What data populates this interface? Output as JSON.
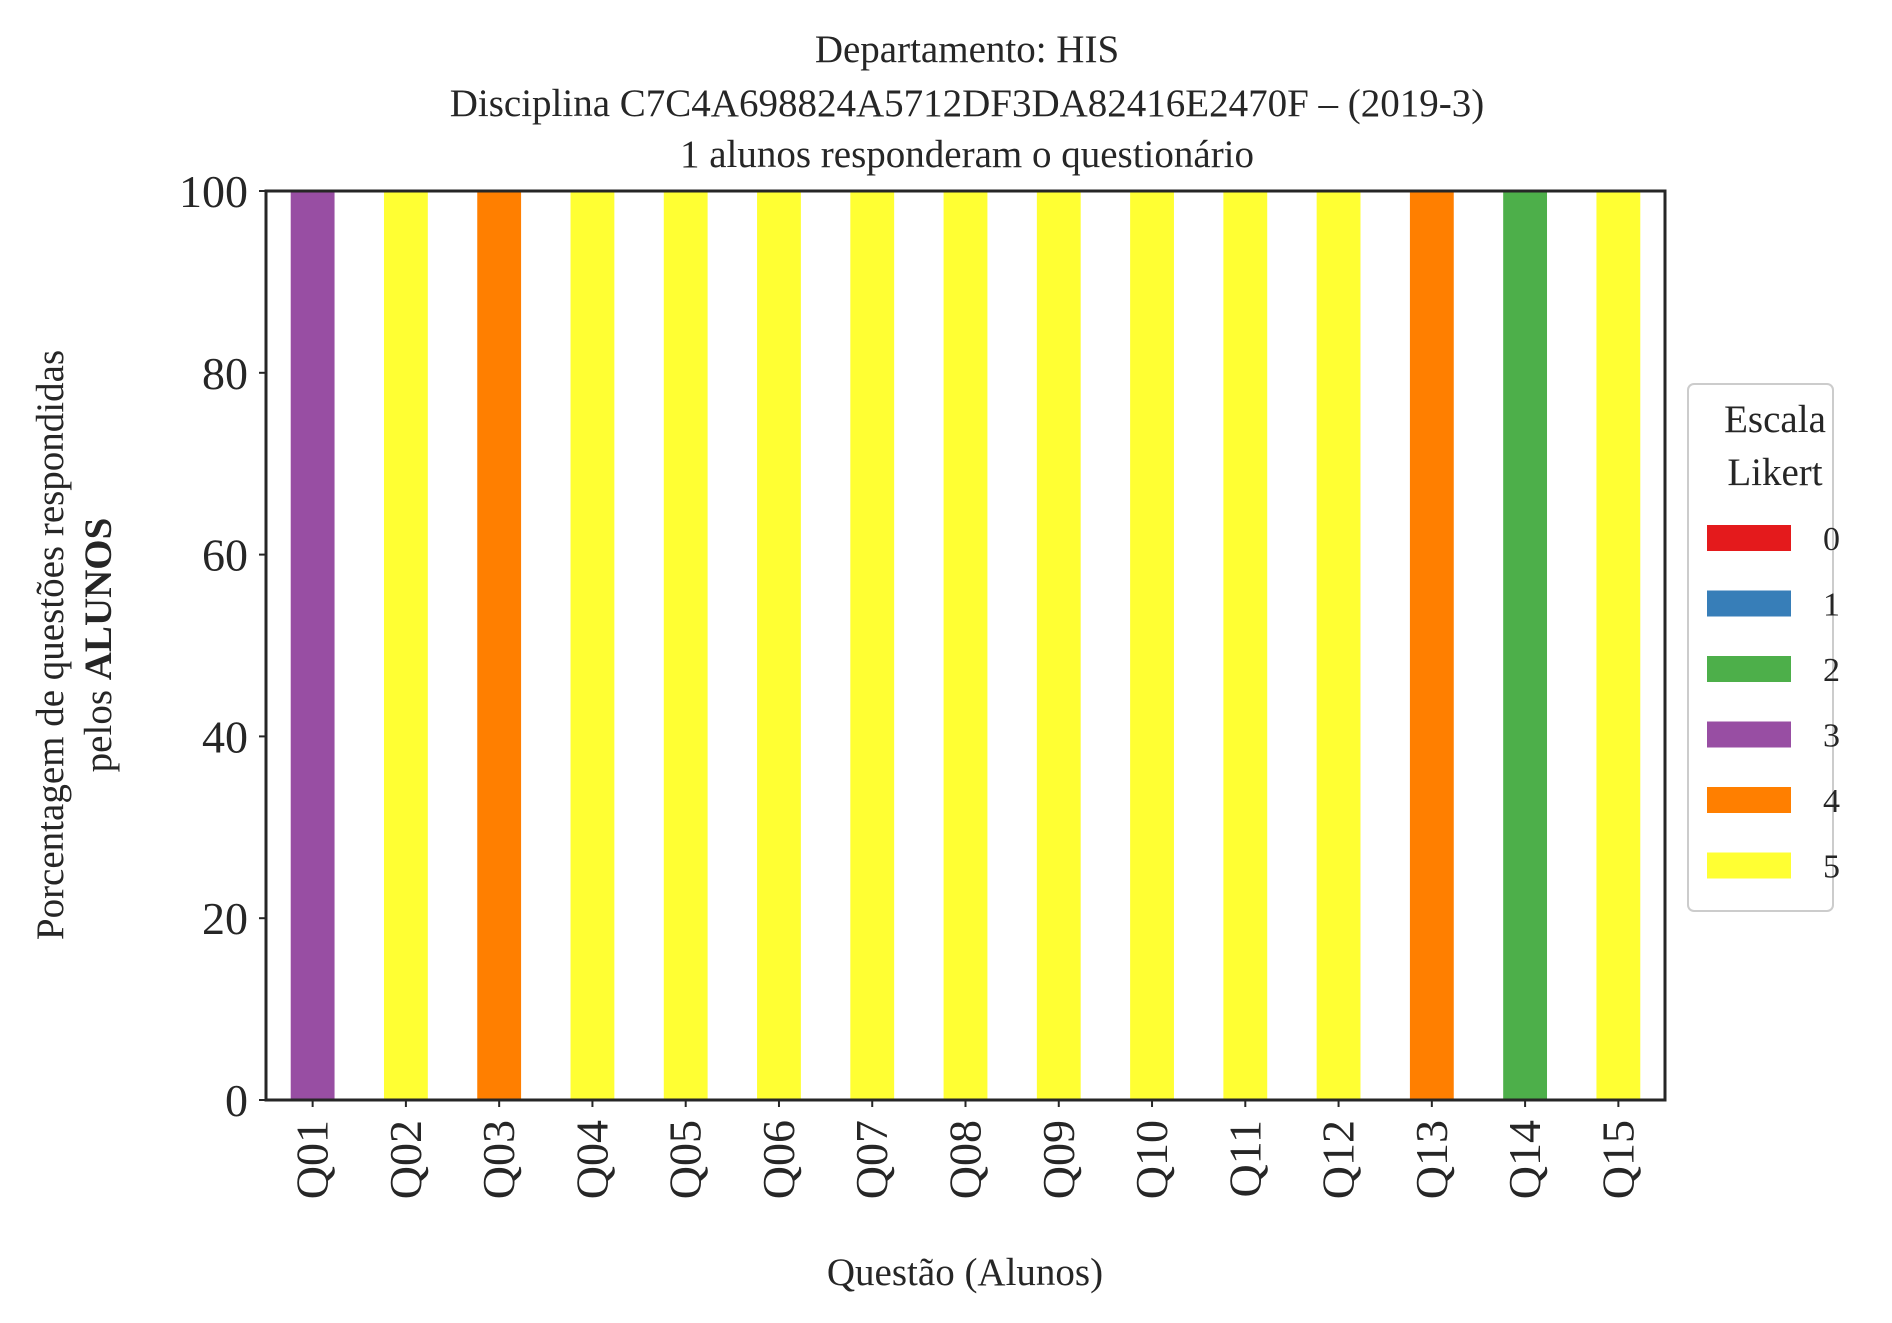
{
  "chart_data": {
    "type": "bar",
    "stacked": true,
    "title_lines": [
      "Departamento: HIS",
      "Disciplina C7C4A698824A5712DF3DA82416E2470F – (2019-3)",
      "1 alunos responderam o questionário"
    ],
    "xlabel": "Questão (Alunos)",
    "ylabel_line1": "Porcentagem de questões respondidas",
    "ylabel_line2_prefix": "pelos ",
    "ylabel_line2_bold": "ALUNOS",
    "ylim": [
      0,
      100
    ],
    "yticks": [
      0,
      20,
      40,
      60,
      80,
      100
    ],
    "categories": [
      "Q01",
      "Q02",
      "Q03",
      "Q04",
      "Q05",
      "Q06",
      "Q07",
      "Q08",
      "Q09",
      "Q10",
      "Q11",
      "Q12",
      "Q13",
      "Q14",
      "Q15"
    ],
    "legend": {
      "title_lines": [
        "Escala",
        "Likert"
      ],
      "placement": "center-right, outside plot"
    },
    "series": [
      {
        "name": "0",
        "color": "#e41a1c",
        "values": [
          0,
          0,
          0,
          0,
          0,
          0,
          0,
          0,
          0,
          0,
          0,
          0,
          0,
          0,
          0
        ]
      },
      {
        "name": "1",
        "color": "#377eb8",
        "values": [
          0,
          0,
          0,
          0,
          0,
          0,
          0,
          0,
          0,
          0,
          0,
          0,
          0,
          0,
          0
        ]
      },
      {
        "name": "2",
        "color": "#4daf4a",
        "values": [
          0,
          0,
          0,
          0,
          0,
          0,
          0,
          0,
          0,
          0,
          0,
          0,
          0,
          100,
          0
        ]
      },
      {
        "name": "3",
        "color": "#984ea3",
        "values": [
          100,
          0,
          0,
          0,
          0,
          0,
          0,
          0,
          0,
          0,
          0,
          0,
          0,
          0,
          0
        ]
      },
      {
        "name": "4",
        "color": "#ff7f00",
        "values": [
          0,
          0,
          100,
          0,
          0,
          0,
          0,
          0,
          0,
          0,
          0,
          0,
          100,
          0,
          0
        ]
      },
      {
        "name": "5",
        "color": "#ffff33",
        "values": [
          0,
          100,
          0,
          100,
          100,
          100,
          100,
          100,
          100,
          100,
          100,
          100,
          0,
          0,
          100
        ]
      }
    ]
  }
}
